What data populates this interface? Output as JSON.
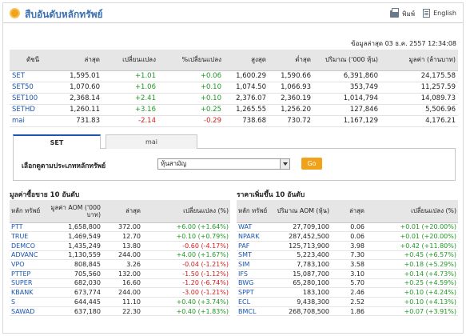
{
  "header": {
    "title": "สืบอันดับหลักทรัพย์",
    "print_label": "พิมพ์",
    "english_label": "English"
  },
  "timestamp": "ข้อมูลล่าสุด 03 ธ.ค. 2557 12:34:08",
  "index_table": {
    "columns": [
      "ดัชนี",
      "ล่าสุด",
      "เปลี่ยนแปลง",
      "%เปลี่ยนแปลง",
      "สูงสุด",
      "ต่ำสุด",
      "ปริมาณ ('000 หุ้น)",
      "มูลค่า (ล้านบาท)"
    ],
    "rows": [
      {
        "name": "SET",
        "last": "1,595.01",
        "change": "+1.01",
        "pct": "+0.06",
        "high": "1,600.29",
        "low": "1,590.66",
        "volume": "6,391,860",
        "value": "24,175.58",
        "dir": "up"
      },
      {
        "name": "SET50",
        "last": "1,070.60",
        "change": "+1.06",
        "pct": "+0.10",
        "high": "1,074.50",
        "low": "1,066.93",
        "volume": "353,749",
        "value": "11,257.59",
        "dir": "up"
      },
      {
        "name": "SET100",
        "last": "2,368.14",
        "change": "+2.41",
        "pct": "+0.10",
        "high": "2,376.07",
        "low": "2,360.19",
        "volume": "1,014,794",
        "value": "14,089.73",
        "dir": "up"
      },
      {
        "name": "SETHD",
        "last": "1,260.11",
        "change": "+3.16",
        "pct": "+0.25",
        "high": "1,265.55",
        "low": "1,256.20",
        "volume": "127,846",
        "value": "5,506.96",
        "dir": "up"
      },
      {
        "name": "mai",
        "last": "731.83",
        "change": "-2.14",
        "pct": "-0.29",
        "high": "738.68",
        "low": "730.72",
        "volume": "1,167,129",
        "value": "4,176.21",
        "dir": "dn"
      }
    ]
  },
  "tabs": [
    {
      "label": "SET",
      "active": true
    },
    {
      "label": "mai",
      "active": false
    }
  ],
  "filter": {
    "label": "เลือกดูตามประเภทหลักทรัพย์",
    "selected": "หุ้นสามัญ",
    "go_label": "Go"
  },
  "left_table": {
    "title": "มูลค่าซื้อขาย 10 อันดับ",
    "columns": [
      "หลัก ทรัพย์",
      "มูลค่า AOM ('000 บาท)",
      "ล่าสุด",
      "เปลี่ยนแปลง (%)"
    ],
    "rows": [
      {
        "name": "PTT",
        "value": "1,658,800",
        "last": "372.00",
        "change": "+6.00 (+1.64%)",
        "dir": "up"
      },
      {
        "name": "TRUE",
        "value": "1,469,549",
        "last": "12.70",
        "change": "+0.10 (+0.79%)",
        "dir": "up"
      },
      {
        "name": "DEMCO",
        "value": "1,435,249",
        "last": "13.80",
        "change": "-0.60 (-4.17%)",
        "dir": "dn"
      },
      {
        "name": "ADVANC",
        "value": "1,130,559",
        "last": "244.00",
        "change": "+4.00 (+1.67%)",
        "dir": "up"
      },
      {
        "name": "VPO",
        "value": "808,845",
        "last": "3.26",
        "change": "-0.04 (-1.21%)",
        "dir": "dn"
      },
      {
        "name": "PTTEP",
        "value": "705,560",
        "last": "132.00",
        "change": "-1.50 (-1.12%)",
        "dir": "dn"
      },
      {
        "name": "SUPER",
        "value": "682,030",
        "last": "16.60",
        "change": "-1.20 (-6.74%)",
        "dir": "dn"
      },
      {
        "name": "KBANK",
        "value": "673,774",
        "last": "244.00",
        "change": "-3.00 (-1.21%)",
        "dir": "dn"
      },
      {
        "name": "S",
        "value": "644,445",
        "last": "11.10",
        "change": "+0.40 (+3.74%)",
        "dir": "up"
      },
      {
        "name": "SAWAD",
        "value": "637,180",
        "last": "22.30",
        "change": "+0.40 (+1.83%)",
        "dir": "up"
      }
    ]
  },
  "right_table": {
    "title": "ราคาเพิ่มขึ้น 10 อันดับ",
    "columns": [
      "หลัก ทรัพย์",
      "ปริมาณ AOM (หุ้น)",
      "ล่าสุด",
      "เปลี่ยนแปลง (%)"
    ],
    "rows": [
      {
        "name": "WAT",
        "value": "27,709,100",
        "last": "0.06",
        "change": "+0.01 (+20.00%)",
        "dir": "up"
      },
      {
        "name": "NPARK",
        "value": "287,452,500",
        "last": "0.06",
        "change": "+0.01 (+20.00%)",
        "dir": "up"
      },
      {
        "name": "PAF",
        "value": "125,713,900",
        "last": "3.98",
        "change": "+0.42 (+11.80%)",
        "dir": "up"
      },
      {
        "name": "SMT",
        "value": "5,223,400",
        "last": "7.30",
        "change": "+0.45 (+6.57%)",
        "dir": "up"
      },
      {
        "name": "SIM",
        "value": "7,783,100",
        "last": "3.58",
        "change": "+0.18 (+5.29%)",
        "dir": "up"
      },
      {
        "name": "IFS",
        "value": "15,087,700",
        "last": "3.10",
        "change": "+0.14 (+4.73%)",
        "dir": "up"
      },
      {
        "name": "BWG",
        "value": "65,280,100",
        "last": "5.70",
        "change": "+0.25 (+4.59%)",
        "dir": "up"
      },
      {
        "name": "SPPT",
        "value": "183,100",
        "last": "2.46",
        "change": "+0.10 (+4.24%)",
        "dir": "up"
      },
      {
        "name": "ECL",
        "value": "9,438,300",
        "last": "2.52",
        "change": "+0.10 (+4.13%)",
        "dir": "up"
      },
      {
        "name": "BMCL",
        "value": "268,708,500",
        "last": "1.86",
        "change": "+0.07 (+3.91%)",
        "dir": "up"
      }
    ]
  }
}
